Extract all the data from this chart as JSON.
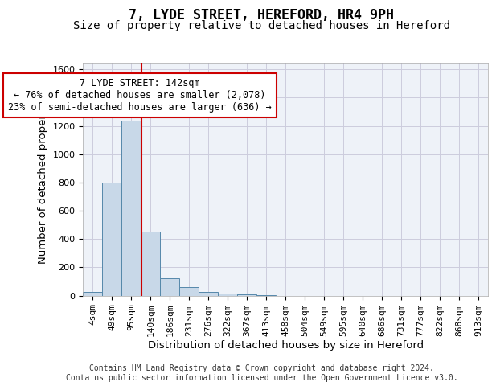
{
  "title": "7, LYDE STREET, HEREFORD, HR4 9PH",
  "subtitle": "Size of property relative to detached houses in Hereford",
  "xlabel": "Distribution of detached houses by size in Hereford",
  "ylabel": "Number of detached properties",
  "bin_labels": [
    "4sqm",
    "49sqm",
    "95sqm",
    "140sqm",
    "186sqm",
    "231sqm",
    "276sqm",
    "322sqm",
    "367sqm",
    "413sqm",
    "458sqm",
    "504sqm",
    "549sqm",
    "595sqm",
    "640sqm",
    "686sqm",
    "731sqm",
    "777sqm",
    "822sqm",
    "868sqm",
    "913sqm"
  ],
  "bar_heights": [
    25,
    800,
    1240,
    450,
    125,
    60,
    25,
    15,
    10,
    5,
    0,
    0,
    0,
    0,
    0,
    0,
    0,
    0,
    0,
    0,
    0
  ],
  "bar_color": "#c8d8e8",
  "bar_edge_color": "#5588aa",
  "grid_color": "#ccccdd",
  "background_color": "#eef2f8",
  "annotation_text": "7 LYDE STREET: 142sqm\n← 76% of detached houses are smaller (2,078)\n23% of semi-detached houses are larger (636) →",
  "annotation_box_color": "#ffffff",
  "annotation_box_edge": "#cc0000",
  "annotation_text_color": "#000000",
  "red_line_color": "#cc0000",
  "red_line_x": 2.54,
  "ylim": [
    0,
    1650
  ],
  "yticks": [
    0,
    200,
    400,
    600,
    800,
    1000,
    1200,
    1400,
    1600
  ],
  "footer_line1": "Contains HM Land Registry data © Crown copyright and database right 2024.",
  "footer_line2": "Contains public sector information licensed under the Open Government Licence v3.0.",
  "title_fontsize": 12,
  "subtitle_fontsize": 10,
  "axis_label_fontsize": 9.5,
  "tick_fontsize": 8,
  "annotation_fontsize": 8.5,
  "footer_fontsize": 7
}
